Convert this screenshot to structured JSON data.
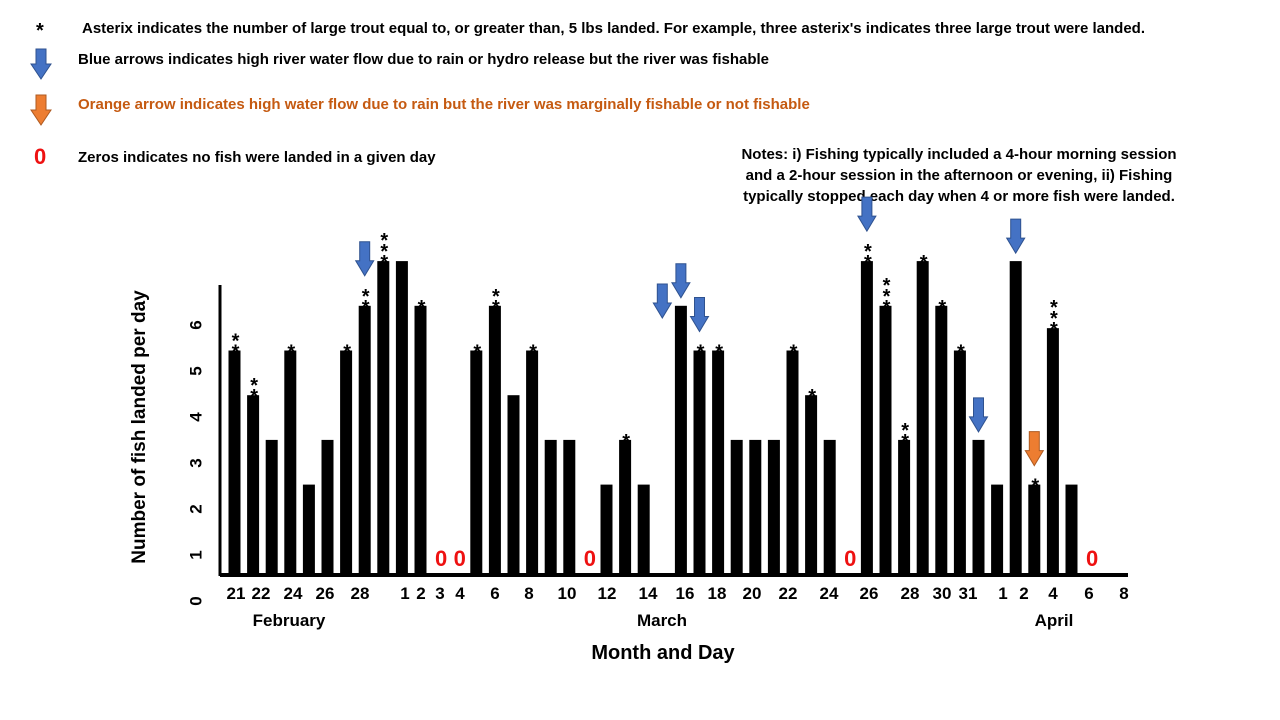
{
  "legend": {
    "asterisk_symbol": "*",
    "asterisk_text": "Asterix indicates the number of large trout equal to, or greater than, 5 lbs landed. For example, three asterix's indicates three large trout were landed.",
    "blue_text": "Blue arrows indicates high river water flow due to rain or hydro release but the river was fishable",
    "orange_text": "Orange arrow indicates high water flow due to rain but the river was marginally fishable or not fishable",
    "zero_symbol": "0",
    "zero_text": "Zeros indicates no fish were landed in a given day"
  },
  "notes": {
    "line1": "Notes: i) Fishing typically included a 4-hour morning session",
    "line2": "and a 2-hour session in the afternoon or evening, ii) Fishing",
    "line3": "typically stopped each day when 4 or more fish were landed."
  },
  "colors": {
    "bar": "#000000",
    "blue_arrow": "#4472c4",
    "orange_arrow": "#ed7d31",
    "zero": "#ee1111"
  },
  "chart_data": {
    "type": "bar",
    "title": "",
    "xlabel": "Month and Day",
    "ylabel": "Number of fish landed per day",
    "ylim": [
      0,
      6.5
    ],
    "yticks": [
      "0",
      "1",
      "2",
      "3",
      "4",
      "5",
      "6"
    ],
    "months": [
      "February",
      "March",
      "April"
    ],
    "tick_labels": [
      "21",
      "22",
      "24",
      "26",
      "28",
      "1",
      "2",
      "3",
      "4",
      "6",
      "8",
      "10",
      "12",
      "14",
      "16",
      "18",
      "20",
      "22",
      "24",
      "26",
      "28",
      "30",
      "31",
      "1",
      "2",
      "4",
      "6",
      "8"
    ],
    "bars": [
      {
        "value": 5,
        "stars": 2
      },
      {
        "value": 4,
        "stars": 2
      },
      {
        "value": 3,
        "stars": 0
      },
      {
        "value": 5,
        "stars": 1
      },
      {
        "value": 2,
        "stars": 0
      },
      {
        "value": 3,
        "stars": 0
      },
      {
        "value": 5,
        "stars": 1
      },
      {
        "value": 6,
        "stars": 2,
        "arrow": "blue"
      },
      {
        "value": 7,
        "stars": 3
      },
      {
        "value": 7,
        "stars": 0
      },
      {
        "value": 6,
        "stars": 1
      },
      {
        "value": 0,
        "stars": 0
      },
      {
        "value": 0,
        "stars": 0
      },
      {
        "value": 5,
        "stars": 1
      },
      {
        "value": 6,
        "stars": 2
      },
      {
        "value": 4,
        "stars": 0
      },
      {
        "value": 5,
        "stars": 1
      },
      {
        "value": 3,
        "stars": 0
      },
      {
        "value": 3,
        "stars": 0
      },
      {
        "value": 0,
        "stars": 0
      },
      {
        "value": 2,
        "stars": 0
      },
      {
        "value": 3,
        "stars": 1
      },
      {
        "value": 2,
        "stars": 0
      },
      {
        "value": 0,
        "stars": 0,
        "arrow": "blue"
      },
      {
        "value": 6,
        "stars": 0,
        "arrow": "blue"
      },
      {
        "value": 5,
        "stars": 1,
        "arrow": "blue"
      },
      {
        "value": 5,
        "stars": 1
      },
      {
        "value": 3,
        "stars": 0
      },
      {
        "value": 3,
        "stars": 0
      },
      {
        "value": 3,
        "stars": 0
      },
      {
        "value": 5,
        "stars": 1
      },
      {
        "value": 4,
        "stars": 1
      },
      {
        "value": 3,
        "stars": 0
      },
      {
        "value": 0,
        "stars": 0
      },
      {
        "value": 7,
        "stars": 2,
        "arrow": "blue"
      },
      {
        "value": 6,
        "stars": 3
      },
      {
        "value": 3,
        "stars": 2
      },
      {
        "value": 7,
        "stars": 1
      },
      {
        "value": 6,
        "stars": 1
      },
      {
        "value": 5,
        "stars": 1
      },
      {
        "value": 3,
        "stars": 0,
        "arrow": "blue"
      },
      {
        "value": 2,
        "stars": 0
      },
      {
        "value": 7,
        "stars": 0,
        "arrow": "blue"
      },
      {
        "value": 2,
        "stars": 1,
        "arrow": "orange"
      },
      {
        "value": 5.5,
        "stars": 3
      },
      {
        "value": 2,
        "stars": 0
      },
      {
        "value": 0,
        "stars": 0
      }
    ]
  }
}
